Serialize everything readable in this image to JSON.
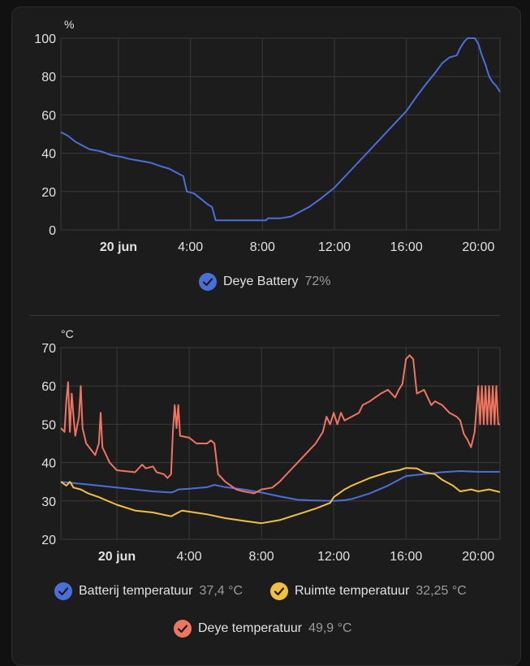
{
  "colors": {
    "battery": "#4a6fd8",
    "batterij_temp": "#4a6fd8",
    "ruimte_temp": "#f0c040",
    "deye_temp": "#ee7560"
  },
  "chart_data": [
    {
      "type": "line",
      "y_unit": "%",
      "ylim": [
        0,
        100
      ],
      "yticks": [
        "0",
        "20",
        "40",
        "60",
        "80",
        "100"
      ],
      "xticks": [
        {
          "t": 0,
          "label": "20 jun",
          "bold": true
        },
        {
          "t": 4,
          "label": "4:00",
          "bold": false
        },
        {
          "t": 8,
          "label": "8:00",
          "bold": false
        },
        {
          "t": 12,
          "label": "12:00",
          "bold": false
        },
        {
          "t": 16,
          "label": "16:00",
          "bold": false
        },
        {
          "t": 20,
          "label": "20:00",
          "bold": false
        }
      ],
      "xlim": [
        -3.2,
        21.2
      ],
      "grid": true,
      "legend_position": "bottom-center",
      "series": [
        {
          "name": "Deye Battery",
          "current": "72%",
          "color_key": "battery",
          "points": [
            [
              -3.2,
              51
            ],
            [
              -2.8,
              49
            ],
            [
              -2.4,
              46
            ],
            [
              -2.0,
              44
            ],
            [
              -1.6,
              42
            ],
            [
              -1.0,
              41
            ],
            [
              -0.4,
              39
            ],
            [
              0.2,
              38
            ],
            [
              0.6,
              37
            ],
            [
              1.2,
              36
            ],
            [
              1.8,
              35
            ],
            [
              2.4,
              33
            ],
            [
              2.8,
              32
            ],
            [
              3.2,
              30
            ],
            [
              3.6,
              28
            ],
            [
              3.8,
              20
            ],
            [
              4.2,
              19
            ],
            [
              4.6,
              16
            ],
            [
              5.0,
              13
            ],
            [
              5.2,
              12
            ],
            [
              5.4,
              5
            ],
            [
              6.0,
              5
            ],
            [
              7.0,
              5
            ],
            [
              8.2,
              5
            ],
            [
              8.3,
              6
            ],
            [
              9.0,
              6
            ],
            [
              9.6,
              7
            ],
            [
              10.0,
              9
            ],
            [
              10.6,
              12
            ],
            [
              11.2,
              16
            ],
            [
              12.0,
              22
            ],
            [
              13.0,
              32
            ],
            [
              14.0,
              42
            ],
            [
              15.0,
              52
            ],
            [
              16.0,
              62
            ],
            [
              16.6,
              70
            ],
            [
              17.0,
              75
            ],
            [
              17.6,
              82
            ],
            [
              18.0,
              87
            ],
            [
              18.4,
              90
            ],
            [
              18.8,
              91
            ],
            [
              19.0,
              95
            ],
            [
              19.2,
              98
            ],
            [
              19.4,
              100
            ],
            [
              19.8,
              100
            ],
            [
              20.0,
              97
            ],
            [
              20.2,
              91
            ],
            [
              20.4,
              86
            ],
            [
              20.6,
              80
            ],
            [
              20.8,
              77
            ],
            [
              21.0,
              75
            ],
            [
              21.2,
              72
            ]
          ]
        }
      ]
    },
    {
      "type": "line",
      "y_unit": "°C",
      "ylim": [
        20,
        70
      ],
      "yticks": [
        "20",
        "30",
        "40",
        "50",
        "60",
        "70"
      ],
      "xticks": [
        {
          "t": 0,
          "label": "20 jun",
          "bold": true
        },
        {
          "t": 4,
          "label": "4:00",
          "bold": false
        },
        {
          "t": 8,
          "label": "8:00",
          "bold": false
        },
        {
          "t": 12,
          "label": "12:00",
          "bold": false
        },
        {
          "t": 16,
          "label": "16:00",
          "bold": false
        },
        {
          "t": 20,
          "label": "20:00",
          "bold": false
        }
      ],
      "xlim": [
        -3.1,
        21.2
      ],
      "grid": true,
      "legend_position": "bottom-center",
      "series": [
        {
          "name": "Batterij temperatuur",
          "current": "37,4 °C",
          "color_key": "batterij_temp",
          "points": [
            [
              -3.1,
              35
            ],
            [
              -2.0,
              34.5
            ],
            [
              -1.0,
              34
            ],
            [
              0.0,
              33.5
            ],
            [
              1.0,
              33
            ],
            [
              2.0,
              32.5
            ],
            [
              3.0,
              32.2
            ],
            [
              3.2,
              32.5
            ],
            [
              3.4,
              33
            ],
            [
              4.0,
              33.2
            ],
            [
              5.0,
              33.6
            ],
            [
              5.4,
              34.2
            ],
            [
              6.0,
              33.6
            ],
            [
              7.0,
              33
            ],
            [
              8.0,
              32.2
            ],
            [
              9.0,
              31.2
            ],
            [
              10.0,
              30.3
            ],
            [
              11.0,
              30.1
            ],
            [
              12.0,
              30
            ],
            [
              12.6,
              30.2
            ],
            [
              13.0,
              30.5
            ],
            [
              14.0,
              32
            ],
            [
              15.0,
              34
            ],
            [
              16.0,
              36.5
            ],
            [
              17.0,
              37
            ],
            [
              18.0,
              37.5
            ],
            [
              19.0,
              37.8
            ],
            [
              20.0,
              37.6
            ],
            [
              21.2,
              37.6
            ]
          ]
        },
        {
          "name": "Ruimte temperatuur",
          "current": "32,25 °C",
          "color_key": "ruimte_temp",
          "points": [
            [
              -3.1,
              35
            ],
            [
              -2.8,
              34
            ],
            [
              -2.6,
              35
            ],
            [
              -2.4,
              33.5
            ],
            [
              -2.0,
              33
            ],
            [
              -1.6,
              32
            ],
            [
              -1.0,
              31
            ],
            [
              0.0,
              29
            ],
            [
              1.0,
              27.5
            ],
            [
              2.0,
              27
            ],
            [
              3.0,
              26
            ],
            [
              3.2,
              26.5
            ],
            [
              3.6,
              27.5
            ],
            [
              4.0,
              27.2
            ],
            [
              5.0,
              26.5
            ],
            [
              6.0,
              25.5
            ],
            [
              7.0,
              24.8
            ],
            [
              8.0,
              24.2
            ],
            [
              9.0,
              25
            ],
            [
              10.0,
              26.5
            ],
            [
              11.0,
              28
            ],
            [
              11.8,
              29.5
            ],
            [
              12.0,
              31
            ],
            [
              12.6,
              33
            ],
            [
              13.0,
              34
            ],
            [
              14.0,
              36
            ],
            [
              15.0,
              37.5
            ],
            [
              15.6,
              38
            ],
            [
              16.0,
              38.6
            ],
            [
              16.6,
              38.5
            ],
            [
              17.0,
              37.5
            ],
            [
              17.6,
              37
            ],
            [
              18.0,
              35.5
            ],
            [
              18.6,
              34
            ],
            [
              19.0,
              32.5
            ],
            [
              19.6,
              33
            ],
            [
              20.0,
              32.5
            ],
            [
              20.6,
              33
            ],
            [
              21.2,
              32.3
            ]
          ]
        },
        {
          "name": "Deye temperatuur",
          "current": "49,9 °C",
          "color_key": "deye_temp",
          "points": [
            [
              -3.1,
              49
            ],
            [
              -2.9,
              48
            ],
            [
              -2.8,
              56
            ],
            [
              -2.7,
              61
            ],
            [
              -2.6,
              48
            ],
            [
              -2.5,
              58
            ],
            [
              -2.4,
              52
            ],
            [
              -2.3,
              47
            ],
            [
              -2.1,
              52
            ],
            [
              -2.0,
              60
            ],
            [
              -1.9,
              49
            ],
            [
              -1.7,
              45
            ],
            [
              -1.2,
              42
            ],
            [
              -1.0,
              45
            ],
            [
              -0.9,
              53
            ],
            [
              -0.8,
              44
            ],
            [
              -0.4,
              40
            ],
            [
              0.0,
              38
            ],
            [
              1.0,
              37.5
            ],
            [
              1.4,
              39.5
            ],
            [
              1.6,
              38.5
            ],
            [
              2.0,
              39
            ],
            [
              2.2,
              37.5
            ],
            [
              2.6,
              37
            ],
            [
              2.8,
              36
            ],
            [
              3.0,
              37
            ],
            [
              3.1,
              48
            ],
            [
              3.2,
              55
            ],
            [
              3.3,
              49
            ],
            [
              3.4,
              55
            ],
            [
              3.5,
              47
            ],
            [
              4.0,
              46.5
            ],
            [
              4.4,
              45
            ],
            [
              5.0,
              45
            ],
            [
              5.2,
              45.8
            ],
            [
              5.4,
              45
            ],
            [
              5.6,
              37
            ],
            [
              6.0,
              35
            ],
            [
              6.6,
              33
            ],
            [
              7.0,
              32.5
            ],
            [
              7.6,
              32
            ],
            [
              8.0,
              33
            ],
            [
              8.6,
              33.5
            ],
            [
              9.0,
              35
            ],
            [
              9.6,
              38
            ],
            [
              10.0,
              40
            ],
            [
              10.6,
              43
            ],
            [
              11.0,
              45
            ],
            [
              11.4,
              48
            ],
            [
              11.6,
              52
            ],
            [
              11.8,
              50
            ],
            [
              12.0,
              53
            ],
            [
              12.2,
              50
            ],
            [
              12.4,
              53
            ],
            [
              12.6,
              51
            ],
            [
              13.0,
              52
            ],
            [
              13.4,
              53
            ],
            [
              13.6,
              55
            ],
            [
              14.0,
              56
            ],
            [
              14.6,
              58
            ],
            [
              15.0,
              59
            ],
            [
              15.4,
              57
            ],
            [
              15.6,
              59
            ],
            [
              15.8,
              60.5
            ],
            [
              16.0,
              67
            ],
            [
              16.2,
              68
            ],
            [
              16.4,
              67
            ],
            [
              16.6,
              58
            ],
            [
              17.0,
              59
            ],
            [
              17.2,
              57
            ],
            [
              17.4,
              55
            ],
            [
              17.6,
              56
            ],
            [
              18.0,
              55
            ],
            [
              18.4,
              53
            ],
            [
              18.8,
              52
            ],
            [
              19.0,
              51
            ],
            [
              19.2,
              47.5
            ],
            [
              19.4,
              46
            ],
            [
              19.6,
              44
            ],
            [
              19.8,
              48
            ],
            [
              20.0,
              60
            ],
            [
              20.1,
              50
            ],
            [
              20.2,
              60
            ],
            [
              20.3,
              50
            ],
            [
              20.4,
              60
            ],
            [
              20.5,
              50
            ],
            [
              20.6,
              60
            ],
            [
              20.7,
              50
            ],
            [
              20.8,
              60
            ],
            [
              20.9,
              50
            ],
            [
              21.0,
              60
            ],
            [
              21.1,
              50
            ],
            [
              21.2,
              50
            ]
          ]
        }
      ]
    }
  ]
}
